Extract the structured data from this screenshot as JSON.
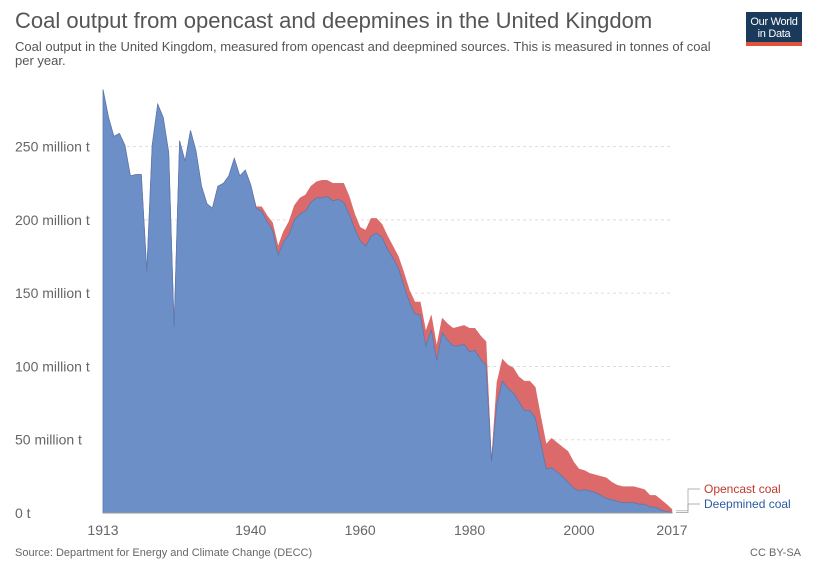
{
  "header": {
    "title": "Coal output from opencast and deepmines in the United Kingdom",
    "subtitle": "Coal output in the United Kingdom, measured from opencast and deepmined sources. This is measured in tonnes of coal per year.",
    "logo_line1": "Our World",
    "logo_line2": "in Data"
  },
  "footer": {
    "source": "Source: Department for Energy and Climate Change (DECC)",
    "license": "CC BY-SA"
  },
  "colors": {
    "deepmined": "#6b8fc6",
    "opencast": "#dc6a6a",
    "deepmined_text": "#2c5aa0",
    "opencast_text": "#c0392b",
    "grid": "#dddddd"
  },
  "chart_data": {
    "type": "area",
    "stacked": true,
    "xlabel": "",
    "ylabel": "",
    "xlim": [
      1913,
      2017
    ],
    "ylim": [
      0,
      290000000
    ],
    "y_ticks": [
      {
        "value": 0,
        "label": "0 t"
      },
      {
        "value": 50000000,
        "label": "50 million t"
      },
      {
        "value": 100000000,
        "label": "100 million t"
      },
      {
        "value": 150000000,
        "label": "150 million t"
      },
      {
        "value": 200000000,
        "label": "200 million t"
      },
      {
        "value": 250000000,
        "label": "250 million t"
      }
    ],
    "x_ticks": [
      {
        "value": 1913,
        "label": "1913"
      },
      {
        "value": 1940,
        "label": "1940"
      },
      {
        "value": 1960,
        "label": "1960"
      },
      {
        "value": 1980,
        "label": "1980"
      },
      {
        "value": 2000,
        "label": "2000"
      },
      {
        "value": 2017,
        "label": "2017"
      }
    ],
    "grid": true,
    "legend_position": "right",
    "x": [
      1913,
      1914,
      1915,
      1916,
      1917,
      1918,
      1919,
      1920,
      1921,
      1922,
      1923,
      1924,
      1925,
      1926,
      1927,
      1928,
      1929,
      1930,
      1931,
      1932,
      1933,
      1934,
      1935,
      1936,
      1937,
      1938,
      1939,
      1940,
      1941,
      1942,
      1943,
      1944,
      1945,
      1946,
      1947,
      1948,
      1949,
      1950,
      1951,
      1952,
      1953,
      1954,
      1955,
      1956,
      1957,
      1958,
      1959,
      1960,
      1961,
      1962,
      1963,
      1964,
      1965,
      1966,
      1967,
      1968,
      1969,
      1970,
      1971,
      1972,
      1973,
      1974,
      1975,
      1976,
      1977,
      1978,
      1979,
      1980,
      1981,
      1982,
      1983,
      1984,
      1985,
      1986,
      1987,
      1988,
      1989,
      1990,
      1991,
      1992,
      1993,
      1994,
      1995,
      1996,
      1997,
      1998,
      1999,
      2000,
      2001,
      2002,
      2003,
      2004,
      2005,
      2006,
      2007,
      2008,
      2009,
      2010,
      2011,
      2012,
      2013,
      2014,
      2015,
      2016,
      2017
    ],
    "series": [
      {
        "name": "Deepmined coal",
        "values": [
          289,
          270,
          257,
          259,
          251,
          230,
          231,
          231,
          165,
          251,
          279,
          270,
          246,
          127,
          254,
          240,
          261,
          247,
          223,
          211,
          208,
          223,
          225,
          230,
          242,
          230,
          234,
          224,
          208,
          206,
          199,
          193,
          176,
          185,
          190,
          200,
          204,
          206,
          212,
          215,
          215,
          216,
          213,
          214,
          212,
          204,
          194,
          186,
          182,
          189,
          191,
          188,
          180,
          174,
          167,
          155,
          144,
          136,
          135,
          114,
          125,
          104,
          123,
          118,
          114,
          114,
          115,
          110,
          111,
          105,
          101,
          35,
          75,
          90,
          85,
          82,
          76,
          70,
          70,
          65,
          48,
          30,
          31,
          28,
          25,
          21,
          17,
          15,
          16,
          15,
          14,
          12,
          10,
          9,
          8,
          7,
          7,
          7,
          6,
          6,
          4,
          4,
          2,
          1,
          0.5
        ]
      },
      {
        "name": "Opencast coal",
        "values": [
          0,
          0,
          0,
          0,
          0,
          0,
          0,
          0,
          0,
          0,
          0,
          0,
          0,
          0,
          0,
          0,
          0,
          0,
          0,
          0,
          0,
          0,
          0,
          0,
          0,
          0,
          0,
          0,
          1,
          3,
          4,
          5,
          6,
          7,
          9,
          10,
          11,
          11,
          11,
          11,
          12,
          11,
          12,
          11,
          13,
          12,
          10,
          9,
          11,
          12,
          10,
          9,
          9,
          8,
          8,
          9,
          8,
          8,
          9,
          10,
          10,
          10,
          10,
          11,
          12,
          13,
          13,
          16,
          15,
          16,
          16,
          1,
          14,
          15,
          16,
          17,
          17,
          20,
          20,
          21,
          18,
          17,
          20,
          20,
          20,
          21,
          18,
          15,
          13,
          12,
          12,
          13,
          14,
          12,
          11,
          11,
          11,
          11,
          11,
          10,
          8,
          8,
          7,
          5,
          2
        ]
      }
    ],
    "value_unit_multiplier": 1000000
  }
}
